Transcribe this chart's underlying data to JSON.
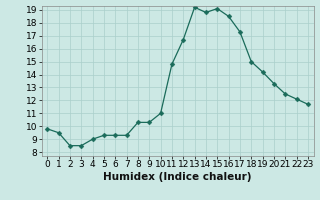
{
  "x": [
    0,
    1,
    2,
    3,
    4,
    5,
    6,
    7,
    8,
    9,
    10,
    11,
    12,
    13,
    14,
    15,
    16,
    17,
    18,
    19,
    20,
    21,
    22,
    23
  ],
  "y": [
    9.8,
    9.5,
    8.5,
    8.5,
    9.0,
    9.3,
    9.3,
    9.3,
    10.3,
    10.3,
    11.0,
    14.8,
    16.7,
    19.2,
    18.8,
    19.1,
    18.5,
    17.3,
    15.0,
    14.2,
    13.3,
    12.5,
    12.1,
    11.7
  ],
  "line_color": "#1a6b5a",
  "marker": "D",
  "marker_size": 2.5,
  "bg_color": "#cce8e4",
  "grid_color": "#aacfcb",
  "xlabel": "Humidex (Indice chaleur)",
  "xlabel_fontsize": 7.5,
  "ytick_min": 8,
  "ytick_max": 19,
  "xtick_labels": [
    "0",
    "1",
    "2",
    "3",
    "4",
    "5",
    "6",
    "7",
    "8",
    "9",
    "10",
    "11",
    "12",
    "13",
    "14",
    "15",
    "16",
    "17",
    "18",
    "19",
    "20",
    "21",
    "22",
    "23"
  ],
  "tick_fontsize": 6.5
}
